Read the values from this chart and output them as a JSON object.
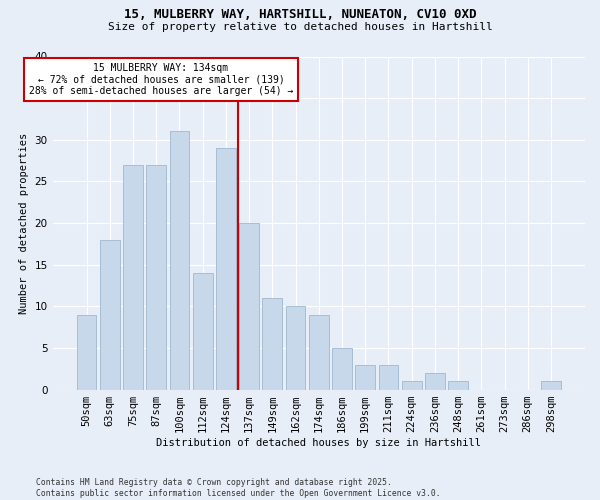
{
  "title1": "15, MULBERRY WAY, HARTSHILL, NUNEATON, CV10 0XD",
  "title2": "Size of property relative to detached houses in Hartshill",
  "xlabel": "Distribution of detached houses by size in Hartshill",
  "ylabel": "Number of detached properties",
  "categories": [
    "50sqm",
    "63sqm",
    "75sqm",
    "87sqm",
    "100sqm",
    "112sqm",
    "124sqm",
    "137sqm",
    "149sqm",
    "162sqm",
    "174sqm",
    "186sqm",
    "199sqm",
    "211sqm",
    "224sqm",
    "236sqm",
    "248sqm",
    "261sqm",
    "273sqm",
    "286sqm",
    "298sqm"
  ],
  "values": [
    9,
    18,
    27,
    27,
    31,
    14,
    29,
    20,
    11,
    10,
    9,
    5,
    3,
    3,
    1,
    2,
    1,
    0,
    0,
    0,
    1
  ],
  "bar_color": "#c8d8eb",
  "bar_edge_color": "#a0b8d0",
  "vline_color": "#cc0000",
  "annotation_title": "15 MULBERRY WAY: 134sqm",
  "annotation_line1": "← 72% of detached houses are smaller (139)",
  "annotation_line2": "28% of semi-detached houses are larger (54) →",
  "annotation_box_color": "#ffffff",
  "annotation_box_edge": "#cc0000",
  "footer1": "Contains HM Land Registry data © Crown copyright and database right 2025.",
  "footer2": "Contains public sector information licensed under the Open Government Licence v3.0.",
  "ylim": [
    0,
    40
  ],
  "yticks": [
    0,
    5,
    10,
    15,
    20,
    25,
    30,
    35,
    40
  ],
  "bg_color": "#e8eef8",
  "plot_bg_color": "#e8eef8",
  "vline_pos": 6.5
}
